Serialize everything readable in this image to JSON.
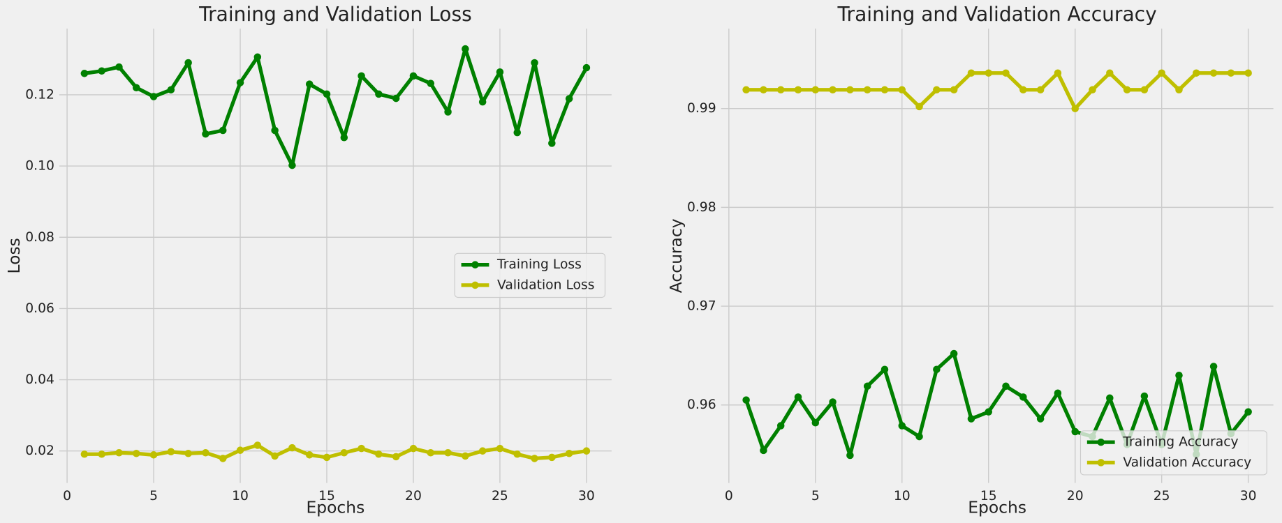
{
  "chart_data": [
    {
      "type": "line",
      "title": "Training and Validation Loss",
      "xlabel": "Epochs",
      "ylabel": "Loss",
      "x": [
        1,
        2,
        3,
        4,
        5,
        6,
        7,
        8,
        9,
        10,
        11,
        12,
        13,
        14,
        15,
        16,
        17,
        18,
        19,
        20,
        21,
        22,
        23,
        24,
        25,
        26,
        27,
        28,
        29,
        30
      ],
      "series": [
        {
          "name": "Training Loss",
          "color": "#008000",
          "values": [
            0.126,
            0.1267,
            0.1278,
            0.122,
            0.1195,
            0.1214,
            0.129,
            0.109,
            0.11,
            0.1234,
            0.1306,
            0.11,
            0.1002,
            0.123,
            0.1202,
            0.108,
            0.1253,
            0.1202,
            0.119,
            0.1253,
            0.1232,
            0.1152,
            0.1329,
            0.118,
            0.1264,
            0.1094,
            0.129,
            0.1064,
            0.1189,
            0.1276
          ]
        },
        {
          "name": "Validation Loss",
          "color": "#bfbf00",
          "values": [
            0.0191,
            0.0191,
            0.0195,
            0.0193,
            0.0189,
            0.0198,
            0.0193,
            0.0195,
            0.0179,
            0.0202,
            0.0216,
            0.0186,
            0.0209,
            0.0189,
            0.0182,
            0.0195,
            0.0207,
            0.0191,
            0.0184,
            0.0207,
            0.0195,
            0.0195,
            0.0186,
            0.02,
            0.0207,
            0.0191,
            0.0179,
            0.0182,
            0.0193,
            0.02
          ]
        }
      ],
      "xlim": [
        -0.45,
        31.45
      ],
      "ylim": [
        0.011,
        0.1386
      ],
      "xticks": [
        0,
        5,
        10,
        15,
        20,
        25,
        30
      ],
      "yticks": [
        0.02,
        0.04,
        0.06,
        0.08,
        {
          "value": 0.1,
          "label": "0.10"
        },
        0.12
      ],
      "grid": true,
      "legend": "center right"
    },
    {
      "type": "line",
      "title": "Training and Validation Accuracy",
      "xlabel": "Epochs",
      "ylabel": "Accuracy",
      "x": [
        1,
        2,
        3,
        4,
        5,
        6,
        7,
        8,
        9,
        10,
        11,
        12,
        13,
        14,
        15,
        16,
        17,
        18,
        19,
        20,
        21,
        22,
        23,
        24,
        25,
        26,
        27,
        28,
        29,
        30
      ],
      "series": [
        {
          "name": "Training Accuracy",
          "color": "#008000",
          "values": [
            0.9605,
            0.9554,
            0.9579,
            0.9608,
            0.9582,
            0.9603,
            0.9549,
            0.9619,
            0.9636,
            0.9579,
            0.9568,
            0.9636,
            0.9652,
            0.9586,
            0.9593,
            0.9619,
            0.9608,
            0.9586,
            0.9612,
            0.9573,
            0.9568,
            0.9607,
            0.956,
            0.9609,
            0.956,
            0.963,
            0.955,
            0.9639,
            0.9571,
            0.9593
          ]
        },
        {
          "name": "Validation Accuracy",
          "color": "#bfbf00",
          "values": [
            0.9919,
            0.9919,
            0.9919,
            0.9919,
            0.9919,
            0.9919,
            0.9919,
            0.9919,
            0.9919,
            0.9919,
            0.9902,
            0.9919,
            0.9919,
            0.9936,
            0.9936,
            0.9936,
            0.9919,
            0.9919,
            0.9936,
            0.99,
            0.9919,
            0.9936,
            0.9919,
            0.9919,
            0.9936,
            0.9919,
            0.9936,
            0.9936,
            0.9936,
            0.9936
          ]
        }
      ],
      "xlim": [
        -0.45,
        31.45
      ],
      "ylim": [
        0.9521,
        0.9981
      ],
      "xticks": [
        0,
        5,
        10,
        15,
        20,
        25,
        30
      ],
      "yticks": [
        0.96,
        0.97,
        0.98,
        0.99
      ],
      "grid": true,
      "legend": "lower right"
    }
  ]
}
